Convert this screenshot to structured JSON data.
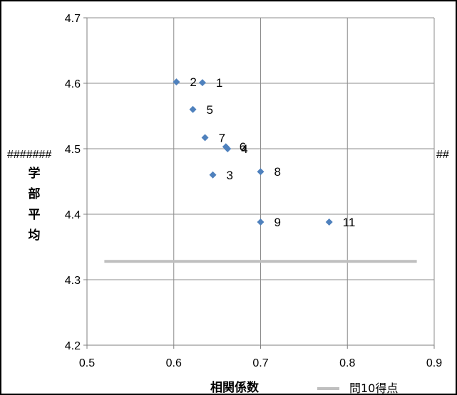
{
  "chart_data": {
    "type": "scatter",
    "title": "",
    "xlabel": "相関係数",
    "ylabel": "学部平均",
    "xlim": [
      0.5,
      0.9
    ],
    "ylim": [
      4.2,
      4.7
    ],
    "x_ticks": [
      "0.5",
      "0.6",
      "0.7",
      "0.8",
      "0.9"
    ],
    "y_ticks": [
      "4.2",
      "4.3",
      "4.4",
      "4.5",
      "4.6",
      "4.7"
    ],
    "grid": true,
    "legend_position": "bottom-right",
    "series": [
      {
        "marker": "diamond",
        "color": "#4F81BD",
        "points": [
          {
            "label": "1",
            "x": 0.633,
            "y": 4.601
          },
          {
            "label": "2",
            "x": 0.603,
            "y": 4.602
          },
          {
            "label": "3",
            "x": 0.645,
            "y": 4.46
          },
          {
            "label": "4",
            "x": 0.662,
            "y": 4.5
          },
          {
            "label": "5",
            "x": 0.622,
            "y": 4.56
          },
          {
            "label": "6",
            "x": 0.66,
            "y": 4.503
          },
          {
            "label": "7",
            "x": 0.636,
            "y": 4.517
          },
          {
            "label": "8",
            "x": 0.7,
            "y": 4.465
          },
          {
            "label": "9",
            "x": 0.7,
            "y": 4.388
          },
          {
            "label": "11",
            "x": 0.779,
            "y": 4.388
          }
        ]
      }
    ],
    "reference_line": {
      "name": "問10得点",
      "color": "#BFBFBF",
      "x": [
        0.52,
        0.88
      ],
      "y": 4.328
    },
    "overflow_text_left": "#######",
    "overflow_text_right": "##"
  }
}
